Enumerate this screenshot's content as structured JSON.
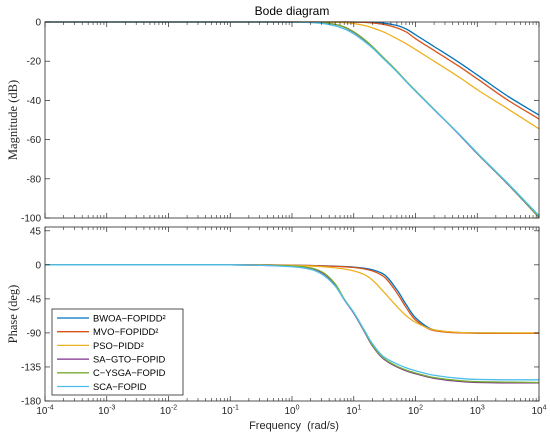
{
  "chart_data": {
    "type": "line",
    "title": "Bode diagram",
    "xlabel": "Frequency  (rad/s)",
    "x_scale": "log",
    "xlim": [
      0.0001,
      10000
    ],
    "x_ticks": [
      0.0001,
      0.001,
      0.01,
      0.1,
      1,
      10,
      100,
      1000,
      10000
    ],
    "x_tick_labels": [
      {
        "base": "10",
        "exp": "-4"
      },
      {
        "base": "10",
        "exp": "-3"
      },
      {
        "base": "10",
        "exp": "-2"
      },
      {
        "base": "10",
        "exp": "-1"
      },
      {
        "base": "10",
        "exp": "0"
      },
      {
        "base": "10",
        "exp": "1"
      },
      {
        "base": "10",
        "exp": "2"
      },
      {
        "base": "10",
        "exp": "3"
      },
      {
        "base": "10",
        "exp": "4"
      }
    ],
    "grid": false,
    "legend": {
      "placement": "lower-left",
      "panel": "phase"
    },
    "magnitude": {
      "ylabel": "Magnitude (dB)",
      "ylim": [
        -100,
        0
      ],
      "y_ticks": [
        0,
        -20,
        -40,
        -60,
        -80,
        -100
      ]
    },
    "phase": {
      "ylabel": "Phase (deg)",
      "ylim": [
        -180,
        50
      ],
      "y_ticks": [
        45,
        0,
        -45,
        -90,
        -135,
        -180
      ]
    },
    "x": [
      0.0001,
      0.001,
      0.01,
      0.1,
      1,
      2,
      3,
      5,
      7,
      10,
      15,
      20,
      30,
      50,
      70,
      100,
      200,
      500,
      1000,
      3000,
      10000
    ],
    "series": [
      {
        "name": "BWOA−FOPIDD²",
        "color": "#0072BD",
        "magnitude": [
          0,
          0,
          0,
          0,
          0,
          0,
          0,
          0,
          0,
          0,
          -0.1,
          -0.2,
          -0.6,
          -1.8,
          -3.5,
          -6.5,
          -12.5,
          -20.5,
          -27,
          -37.5,
          -47.5
        ],
        "phase": [
          0,
          0,
          0,
          0,
          -0.5,
          -1,
          -1.3,
          -1.8,
          -2.3,
          -3,
          -4.5,
          -6.5,
          -12,
          -33,
          -52,
          -70,
          -86,
          -89.5,
          -90,
          -90.2,
          -90.3
        ]
      },
      {
        "name": "MVO−FOPIDD²",
        "color": "#D95319",
        "magnitude": [
          0,
          0,
          0,
          0,
          0,
          0,
          0,
          0,
          0,
          -0.05,
          -0.2,
          -0.5,
          -1.2,
          -3,
          -5,
          -8.5,
          -14.5,
          -22.5,
          -29,
          -39.5,
          -49.5
        ],
        "phase": [
          0,
          0,
          0,
          0,
          -0.5,
          -1,
          -1.4,
          -2,
          -2.6,
          -3.5,
          -5.5,
          -8,
          -15,
          -37,
          -56,
          -73,
          -87,
          -90,
          -90.5,
          -90.5,
          -90.5
        ]
      },
      {
        "name": "PSO−PIDD²",
        "color": "#EDB120",
        "magnitude": [
          0,
          0,
          0,
          0,
          0,
          0,
          -0.05,
          -0.1,
          -0.3,
          -0.8,
          -1.8,
          -3,
          -5,
          -8.5,
          -11,
          -14,
          -20,
          -28,
          -34.5,
          -44,
          -54.5
        ],
        "phase": [
          0,
          0,
          0,
          0,
          -0.8,
          -1.6,
          -2.4,
          -4,
          -5.5,
          -8,
          -13,
          -20,
          -35,
          -55,
          -67,
          -76,
          -86,
          -89.3,
          -90,
          -90,
          -90
        ]
      },
      {
        "name": "SA−GTO−FOPID",
        "color": "#7E2F8E",
        "magnitude": [
          0,
          0,
          0,
          0,
          0,
          -0.1,
          -0.3,
          -1.2,
          -2.6,
          -5.2,
          -9.2,
          -12.7,
          -18.2,
          -25.2,
          -30.2,
          -35.2,
          -44.7,
          -57.2,
          -67.2,
          -82.2,
          -99.7
        ],
        "phase": [
          0,
          0,
          0,
          0,
          -1.8,
          -4.5,
          -10,
          -26,
          -46,
          -64,
          -89,
          -107,
          -124,
          -135,
          -140,
          -144,
          -150,
          -154,
          -155.5,
          -156,
          -156
        ]
      },
      {
        "name": "C−YSGA−FOPID",
        "color": "#77AC30",
        "magnitude": [
          0,
          0,
          0,
          0,
          0,
          -0.1,
          -0.3,
          -1.2,
          -2.5,
          -5,
          -9,
          -12.5,
          -18,
          -25,
          -30,
          -35,
          -44.5,
          -57,
          -67,
          -82,
          -99.5
        ],
        "phase": [
          0,
          0,
          0,
          0,
          -1.5,
          -4,
          -9,
          -25,
          -45,
          -63,
          -88,
          -106,
          -123,
          -134,
          -139,
          -143,
          -149,
          -153,
          -154.5,
          -155,
          -155.5
        ]
      },
      {
        "name": "SCA−FOPID",
        "color": "#4DBEEE",
        "magnitude": [
          0,
          0,
          0,
          0,
          -0.05,
          -0.3,
          -0.7,
          -2,
          -3.5,
          -6,
          -10,
          -13.2,
          -18.6,
          -25.4,
          -30.3,
          -35.3,
          -44.7,
          -57,
          -66.8,
          -81.7,
          -98.8
        ],
        "phase": [
          0,
          0,
          0,
          0,
          -2.5,
          -6,
          -12,
          -28,
          -46,
          -63,
          -87,
          -104,
          -121,
          -131,
          -136,
          -140,
          -146,
          -150,
          -151.5,
          -152,
          -152
        ]
      }
    ]
  }
}
